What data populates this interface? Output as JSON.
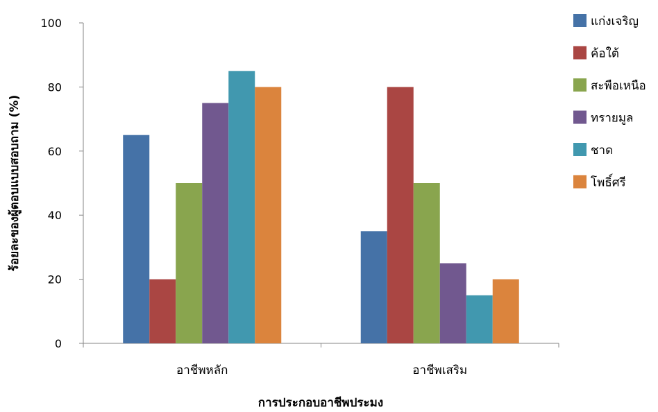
{
  "chart_data": {
    "type": "bar",
    "categories": [
      "อาชีพหลัก",
      "อาชีพเสริม"
    ],
    "series": [
      {
        "name": "แก่งเจริญ",
        "color": "#4572A7",
        "values": [
          65,
          35
        ]
      },
      {
        "name": "ค้อใต้",
        "color": "#AA4643",
        "values": [
          20,
          80
        ]
      },
      {
        "name": "สะพือเหนือ",
        "color": "#89A54E",
        "values": [
          50,
          50
        ]
      },
      {
        "name": "ทรายมูล",
        "color": "#71588F",
        "values": [
          75,
          25
        ]
      },
      {
        "name": "ชาด",
        "color": "#4198AF",
        "values": [
          85,
          15
        ]
      },
      {
        "name": "โพธิ์ศรี",
        "color": "#DB843D",
        "values": [
          80,
          20
        ]
      }
    ],
    "xlabel": "การประกอบอาชีพประมง",
    "ylabel": "ร้อยละของผู้ตอบแบบสอบถาม (%)",
    "ylim": [
      0,
      100
    ],
    "yticks": [
      0,
      20,
      40,
      60,
      80,
      100
    ],
    "grid": false,
    "legend": "right"
  }
}
